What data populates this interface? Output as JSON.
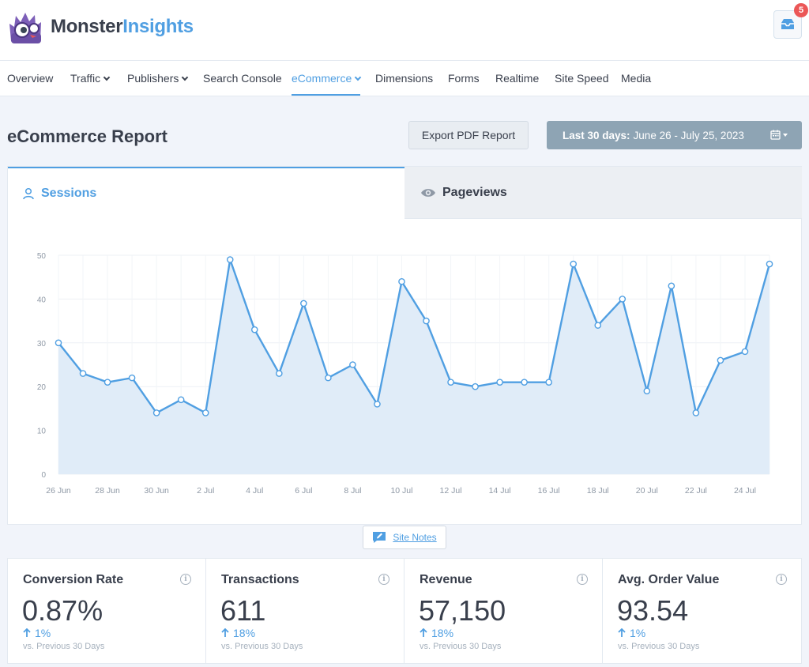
{
  "header": {
    "brand_part1": "Monster",
    "brand_part2": "Insights",
    "notification_count": "5"
  },
  "nav": {
    "items": [
      {
        "label": "Overview",
        "dropdown": false
      },
      {
        "label": "Traffic",
        "dropdown": true
      },
      {
        "label": "Publishers",
        "dropdown": true
      },
      {
        "label": "Search Console",
        "dropdown": false
      },
      {
        "label": "eCommerce",
        "dropdown": true,
        "active": true
      },
      {
        "label": "Dimensions",
        "dropdown": false
      },
      {
        "label": "Forms",
        "dropdown": false
      },
      {
        "label": "Realtime",
        "dropdown": false
      },
      {
        "label": "Site Speed",
        "dropdown": false
      },
      {
        "label": "Media",
        "dropdown": false
      }
    ]
  },
  "report": {
    "title": "eCommerce Report",
    "export_label": "Export PDF Report",
    "date_label": "Last 30 days:",
    "date_range": "June 26 - July 25, 2023"
  },
  "tabs": {
    "sessions": "Sessions",
    "pageviews": "Pageviews"
  },
  "chart_data": {
    "type": "area",
    "x": [
      "26 Jun",
      "27 Jun",
      "28 Jun",
      "29 Jun",
      "30 Jun",
      "1 Jul",
      "2 Jul",
      "3 Jul",
      "4 Jul",
      "5 Jul",
      "6 Jul",
      "7 Jul",
      "8 Jul",
      "9 Jul",
      "10 Jul",
      "11 Jul",
      "12 Jul",
      "13 Jul",
      "14 Jul",
      "15 Jul",
      "16 Jul",
      "17 Jul",
      "18 Jul",
      "19 Jul",
      "20 Jul",
      "21 Jul",
      "22 Jul",
      "23 Jul",
      "24 Jul",
      "25 Jul"
    ],
    "values": [
      30,
      23,
      21,
      22,
      14,
      17,
      14,
      49,
      33,
      23,
      39,
      22,
      25,
      16,
      44,
      35,
      21,
      20,
      21,
      21,
      21,
      48,
      34,
      40,
      19,
      43,
      14,
      26,
      28,
      48
    ],
    "tick_labels": [
      "26 Jun",
      "28 Jun",
      "30 Jun",
      "2 Jul",
      "4 Jul",
      "6 Jul",
      "8 Jul",
      "10 Jul",
      "12 Jul",
      "14 Jul",
      "16 Jul",
      "18 Jul",
      "20 Jul",
      "22 Jul",
      "24 Jul"
    ],
    "ylim": [
      0,
      50
    ],
    "yticks": [
      0,
      10,
      20,
      30,
      40,
      50
    ],
    "grid": true,
    "line_color": "#509fe2",
    "fill_color": "#e0ecf8"
  },
  "site_notes": {
    "label": "Site Notes"
  },
  "metrics": [
    {
      "title": "Conversion Rate",
      "value": "0.87%",
      "change": "1%",
      "sub": "vs. Previous 30 Days"
    },
    {
      "title": "Transactions",
      "value": "611",
      "change": "18%",
      "sub": "vs. Previous 30 Days"
    },
    {
      "title": "Revenue",
      "value": "57,150",
      "change": "18%",
      "sub": "vs. Previous 30 Days"
    },
    {
      "title": "Avg. Order Value",
      "value": "93.54",
      "change": "1%",
      "sub": "vs. Previous 30 Days"
    }
  ],
  "colors": {
    "accent": "#509fe2",
    "text": "#393f4c",
    "muted": "#a6b1bd",
    "date_button": "#8ea4b4",
    "badge": "#eb5757"
  }
}
